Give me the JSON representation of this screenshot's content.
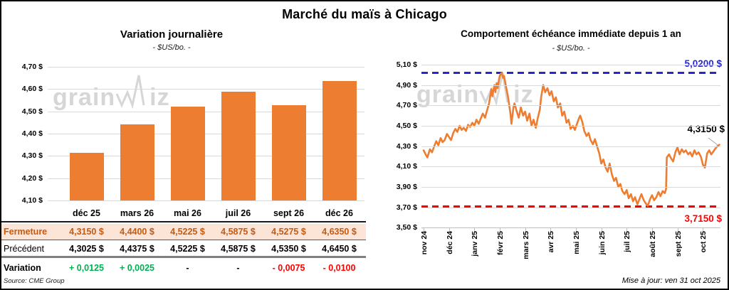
{
  "page": {
    "title": "Marché du maïs à Chicago",
    "source": "Source: CME Group",
    "updated": "Mise à jour: ven 31 oct 2025",
    "watermark_left": "grain",
    "watermark_right": "iz"
  },
  "colors": {
    "bar_orange": "#ED7D31",
    "line_orange": "#ED7D31",
    "ref_blue": "#2727CE",
    "ref_red": "#FF0000",
    "variation_up_green": "#00B050",
    "variation_down_red": "#FF0000",
    "fermeture_bg": "#FCE4D6",
    "fermeture_text": "#C55A11",
    "gridline": "#D9D9D9"
  },
  "table": {
    "columns": [
      "déc 25",
      "mars 26",
      "mai 26",
      "juil 26",
      "sept 26",
      "déc 26"
    ],
    "rows": [
      {
        "label": "Fermeture",
        "values": [
          "4,3150 $",
          "4,4400 $",
          "4,5225 $",
          "4,5875 $",
          "4,5275 $",
          "4,6350 $"
        ]
      },
      {
        "label": "Précédent",
        "values": [
          "4,3025 $",
          "4,4375 $",
          "4,5225 $",
          "4,5875 $",
          "4,5350 $",
          "4,6450 $"
        ]
      },
      {
        "label": "Variation",
        "values": [
          "+ 0,0125",
          "+ 0,0025",
          "-",
          "-",
          "- 0,0075",
          "- 0,0100"
        ],
        "styles": [
          "up",
          "up",
          "flat",
          "flat",
          "down",
          "down"
        ]
      }
    ]
  },
  "chart_data": [
    {
      "type": "bar",
      "title": "Variation journalière",
      "subtitle": "- $US/bo. -",
      "categories": [
        "déc 25",
        "mars 26",
        "mai 26",
        "juil 26",
        "sept 26",
        "déc 26"
      ],
      "values": [
        4.315,
        4.44,
        4.5225,
        4.5875,
        4.5275,
        4.635
      ],
      "ylim": [
        4.1,
        4.7
      ],
      "y_tick_labels": [
        "4,70 $",
        "4,60 $",
        "4,50 $",
        "4,40 $",
        "4,30 $",
        "4,20 $",
        "4,10 $"
      ],
      "y_ticks": [
        4.7,
        4.6,
        4.5,
        4.4,
        4.3,
        4.2,
        4.1
      ],
      "grid": true,
      "bar_color": "#ED7D31"
    },
    {
      "type": "line",
      "title": "Comportement échéance immédiate depuis 1 an",
      "subtitle": "- $US/bo. -",
      "x_tick_labels": [
        "nov 24",
        "déc 24",
        "janv 25",
        "févr 25",
        "mars 25",
        "avr 25",
        "mai 25",
        "juin 25",
        "juil 25",
        "août 25",
        "sept 25",
        "oct 25"
      ],
      "y_tick_labels": [
        "5,10 $",
        "4,90 $",
        "4,70 $",
        "4,50 $",
        "4,30 $",
        "4,10 $",
        "3,90 $",
        "3,70 $",
        "3,50 $"
      ],
      "y_ticks": [
        5.1,
        4.9,
        4.7,
        4.5,
        4.3,
        4.1,
        3.9,
        3.7,
        3.5
      ],
      "ylim": [
        3.5,
        5.1
      ],
      "grid": true,
      "ref_lines": [
        {
          "value": 5.02,
          "label": "5,0200 $",
          "color": "#2727CE",
          "style": "dashed"
        },
        {
          "value": 3.715,
          "label": "3,7150 $",
          "color": "#FF0000",
          "style": "dashed"
        }
      ],
      "last_value": 4.315,
      "last_label": "4,3150 $",
      "series": [
        {
          "name": "échéance immédiate",
          "color": "#ED7D31",
          "points": [
            [
              0,
              4.26
            ],
            [
              0.08,
              4.22
            ],
            [
              0.15,
              4.19
            ],
            [
              0.25,
              4.27
            ],
            [
              0.33,
              4.24
            ],
            [
              0.42,
              4.3
            ],
            [
              0.5,
              4.35
            ],
            [
              0.58,
              4.31
            ],
            [
              0.67,
              4.38
            ],
            [
              0.75,
              4.34
            ],
            [
              0.83,
              4.36
            ],
            [
              0.92,
              4.42
            ],
            [
              1.0,
              4.39
            ],
            [
              1.08,
              4.36
            ],
            [
              1.17,
              4.43
            ],
            [
              1.25,
              4.47
            ],
            [
              1.33,
              4.44
            ],
            [
              1.42,
              4.5
            ],
            [
              1.5,
              4.46
            ],
            [
              1.58,
              4.48
            ],
            [
              1.67,
              4.45
            ],
            [
              1.75,
              4.51
            ],
            [
              1.83,
              4.49
            ],
            [
              1.92,
              4.53
            ],
            [
              2.0,
              4.5
            ],
            [
              2.08,
              4.56
            ],
            [
              2.17,
              4.52
            ],
            [
              2.25,
              4.57
            ],
            [
              2.33,
              4.62
            ],
            [
              2.42,
              4.58
            ],
            [
              2.5,
              4.65
            ],
            [
              2.58,
              4.72
            ],
            [
              2.63,
              4.8
            ],
            [
              2.67,
              4.86
            ],
            [
              2.71,
              4.79
            ],
            [
              2.75,
              4.85
            ],
            [
              2.79,
              4.9
            ],
            [
              2.83,
              4.83
            ],
            [
              2.88,
              4.92
            ],
            [
              2.92,
              4.87
            ],
            [
              2.96,
              4.94
            ],
            [
              3.0,
              4.99
            ],
            [
              3.04,
              5.01
            ],
            [
              3.08,
              5.02
            ],
            [
              3.13,
              4.97
            ],
            [
              3.17,
              4.99
            ],
            [
              3.25,
              4.88
            ],
            [
              3.33,
              4.78
            ],
            [
              3.42,
              4.62
            ],
            [
              3.46,
              4.52
            ],
            [
              3.54,
              4.68
            ],
            [
              3.58,
              4.72
            ],
            [
              3.67,
              4.64
            ],
            [
              3.75,
              4.58
            ],
            [
              3.83,
              4.68
            ],
            [
              3.92,
              4.6
            ],
            [
              4.0,
              4.64
            ],
            [
              4.08,
              4.55
            ],
            [
              4.17,
              4.62
            ],
            [
              4.25,
              4.5
            ],
            [
              4.33,
              4.56
            ],
            [
              4.42,
              4.48
            ],
            [
              4.5,
              4.58
            ],
            [
              4.58,
              4.66
            ],
            [
              4.63,
              4.78
            ],
            [
              4.71,
              4.9
            ],
            [
              4.79,
              4.83
            ],
            [
              4.88,
              4.87
            ],
            [
              4.96,
              4.8
            ],
            [
              5.04,
              4.84
            ],
            [
              5.13,
              4.74
            ],
            [
              5.21,
              4.78
            ],
            [
              5.29,
              4.68
            ],
            [
              5.38,
              4.72
            ],
            [
              5.46,
              4.6
            ],
            [
              5.54,
              4.64
            ],
            [
              5.63,
              4.53
            ],
            [
              5.71,
              4.56
            ],
            [
              5.79,
              4.47
            ],
            [
              5.88,
              4.5
            ],
            [
              5.96,
              4.46
            ],
            [
              6.04,
              4.52
            ],
            [
              6.13,
              4.58
            ],
            [
              6.17,
              4.6
            ],
            [
              6.25,
              4.54
            ],
            [
              6.33,
              4.45
            ],
            [
              6.42,
              4.4
            ],
            [
              6.5,
              4.43
            ],
            [
              6.58,
              4.36
            ],
            [
              6.67,
              4.32
            ],
            [
              6.75,
              4.37
            ],
            [
              6.83,
              4.3
            ],
            [
              6.92,
              4.23
            ],
            [
              7.0,
              4.13
            ],
            [
              7.08,
              4.17
            ],
            [
              7.17,
              4.09
            ],
            [
              7.25,
              4.05
            ],
            [
              7.33,
              4.13
            ],
            [
              7.42,
              4.02
            ],
            [
              7.5,
              3.96
            ],
            [
              7.58,
              3.99
            ],
            [
              7.67,
              3.9
            ],
            [
              7.75,
              3.93
            ],
            [
              7.83,
              3.86
            ],
            [
              7.92,
              3.83
            ],
            [
              8.0,
              3.87
            ],
            [
              8.08,
              3.79
            ],
            [
              8.17,
              3.83
            ],
            [
              8.25,
              3.76
            ],
            [
              8.33,
              3.8
            ],
            [
              8.42,
              3.73
            ],
            [
              8.5,
              3.78
            ],
            [
              8.58,
              3.83
            ],
            [
              8.67,
              3.77
            ],
            [
              8.75,
              3.74
            ],
            [
              8.83,
              3.715
            ],
            [
              8.92,
              3.78
            ],
            [
              9.0,
              3.82
            ],
            [
              9.08,
              3.77
            ],
            [
              9.17,
              3.8
            ],
            [
              9.25,
              3.85
            ],
            [
              9.33,
              3.81
            ],
            [
              9.42,
              3.86
            ],
            [
              9.5,
              3.84
            ],
            [
              9.55,
              3.88
            ],
            [
              9.58,
              4.19
            ],
            [
              9.67,
              4.22
            ],
            [
              9.75,
              4.18
            ],
            [
              9.83,
              4.15
            ],
            [
              9.92,
              4.24
            ],
            [
              10.0,
              4.29
            ],
            [
              10.08,
              4.22
            ],
            [
              10.17,
              4.27
            ],
            [
              10.25,
              4.24
            ],
            [
              10.33,
              4.26
            ],
            [
              10.42,
              4.22
            ],
            [
              10.5,
              4.24
            ],
            [
              10.58,
              4.2
            ],
            [
              10.67,
              4.26
            ],
            [
              10.75,
              4.22
            ],
            [
              10.83,
              4.24
            ],
            [
              10.92,
              4.2
            ],
            [
              11.0,
              4.12
            ],
            [
              11.08,
              4.09
            ],
            [
              11.17,
              4.23
            ],
            [
              11.25,
              4.26
            ],
            [
              11.33,
              4.22
            ],
            [
              11.42,
              4.25
            ],
            [
              11.5,
              4.28
            ],
            [
              11.58,
              4.3
            ],
            [
              11.65,
              4.315
            ]
          ]
        }
      ]
    }
  ]
}
